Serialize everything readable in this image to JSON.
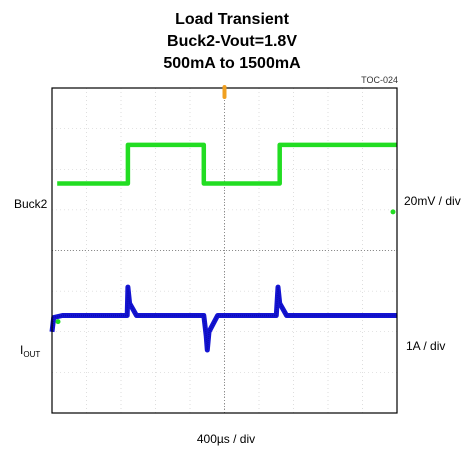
{
  "chart_data": {
    "type": "line",
    "title": [
      "Load Transient",
      "Buck2-Vout=1.8V",
      "500mA to 1500mA"
    ],
    "figure_id": "TOC-024",
    "xlabel": "400µs / div",
    "x_divisions": 10,
    "y_divisions": 8,
    "grid": true,
    "series": [
      {
        "name": "Buck2",
        "scale": "20mV / div",
        "color": "#1414d2",
        "x": [
          0,
          0.05,
          0.3,
          2.18,
          2.2,
          2.25,
          2.45,
          2.8,
          4.4,
          4.47,
          4.5,
          4.55,
          4.8,
          6.5,
          6.55,
          6.6,
          6.8,
          7.2,
          10
        ],
        "y": [
          -2.0,
          -1.65,
          -1.6,
          -1.6,
          -0.9,
          -1.3,
          -1.6,
          -1.6,
          -1.6,
          -2.1,
          -2.45,
          -2.0,
          -1.6,
          -1.6,
          -0.9,
          -1.3,
          -1.6,
          -1.6,
          -1.6
        ]
      },
      {
        "name": "IOUT",
        "name_sub": "OUT",
        "name_main": "I",
        "scale": "1A / div",
        "color": "#22dd22",
        "x": [
          0.15,
          2.2,
          2.2,
          4.4,
          4.4,
          6.6,
          6.6,
          10
        ],
        "y": [
          1.65,
          1.65,
          2.6,
          2.6,
          1.65,
          1.65,
          2.6,
          2.6
        ]
      }
    ]
  },
  "colors": {
    "frame_bg": "#ffffff",
    "frame_border": "#000000",
    "grid": "#c8c8c8",
    "trigger_marker": "#f0a020"
  }
}
